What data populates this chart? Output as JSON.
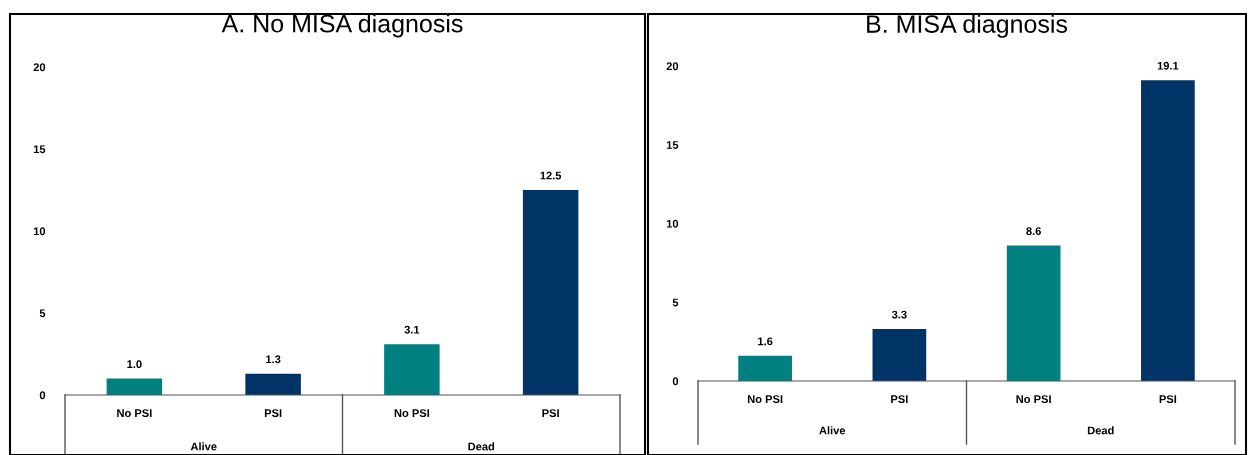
{
  "chart_data": [
    {
      "type": "bar",
      "title": "A. No MISA diagnosis",
      "categories": [
        "No PSI",
        "PSI",
        "No PSI",
        "PSI"
      ],
      "values": [
        1.0,
        1.3,
        3.1,
        12.5
      ],
      "value_labels": [
        "1.0",
        "1.3",
        "3.1",
        "12.5"
      ],
      "colors": [
        "#008080",
        "#003366",
        "#008080",
        "#003366"
      ],
      "ylim": [
        0,
        20
      ],
      "yticks": [
        0,
        5,
        10,
        15,
        20
      ],
      "grid": false,
      "legend": false,
      "annotations": [
        "Alive",
        "Dead"
      ]
    },
    {
      "type": "bar",
      "title": "B. MISA diagnosis",
      "categories": [
        "No PSI",
        "PSI",
        "No PSI",
        "PSI"
      ],
      "values": [
        1.6,
        3.3,
        8.6,
        19.1
      ],
      "value_labels": [
        "1.6",
        "3.3",
        "8.6",
        "19.1"
      ],
      "colors": [
        "#008080",
        "#003366",
        "#008080",
        "#003366"
      ],
      "ylim": [
        0,
        20
      ],
      "yticks": [
        0,
        5,
        10,
        15,
        20
      ],
      "grid": false,
      "legend": false,
      "annotations": [
        "Alive",
        "Dead"
      ]
    }
  ]
}
